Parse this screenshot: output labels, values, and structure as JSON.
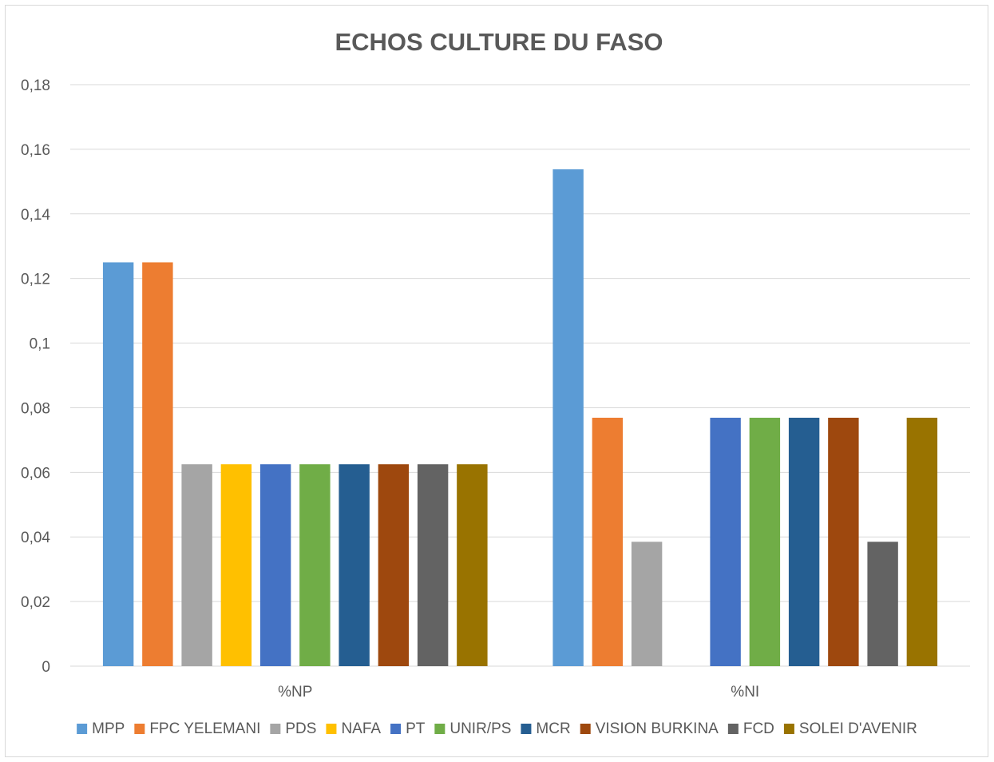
{
  "chart_data": {
    "type": "bar",
    "title": "ECHOS CULTURE DU FASO",
    "categories": [
      "%NP",
      "%NI"
    ],
    "ylim": [
      0,
      0.18
    ],
    "yticks": [
      "0",
      "0,02",
      "0,04",
      "0,06",
      "0,08",
      "0,1",
      "0,12",
      "0,14",
      "0,16",
      "0,18"
    ],
    "grid": true,
    "legend_position": "bottom",
    "series": [
      {
        "name": "MPP",
        "color": "#5b9bd5",
        "values": [
          0.125,
          0.1538
        ]
      },
      {
        "name": "FPC YELEMANI",
        "color": "#ed7d31",
        "values": [
          0.125,
          0.0769
        ]
      },
      {
        "name": "PDS",
        "color": "#a5a5a5",
        "values": [
          0.0625,
          0.0385
        ]
      },
      {
        "name": "NAFA",
        "color": "#ffc000",
        "values": [
          0.0625,
          0
        ]
      },
      {
        "name": "PT",
        "color": "#4472c4",
        "values": [
          0.0625,
          0.0769
        ]
      },
      {
        "name": "UNIR/PS",
        "color": "#70ad47",
        "values": [
          0.0625,
          0.0769
        ]
      },
      {
        "name": "MCR",
        "color": "#255e91",
        "values": [
          0.0625,
          0.0769
        ]
      },
      {
        "name": "VISION BURKINA",
        "color": "#9e480e",
        "values": [
          0.0625,
          0.0769
        ]
      },
      {
        "name": "FCD",
        "color": "#636363",
        "values": [
          0.0625,
          0.0385
        ]
      },
      {
        "name": "SOLEI D'AVENIR",
        "color": "#997300",
        "values": [
          0.0625,
          0.0769
        ]
      }
    ]
  }
}
